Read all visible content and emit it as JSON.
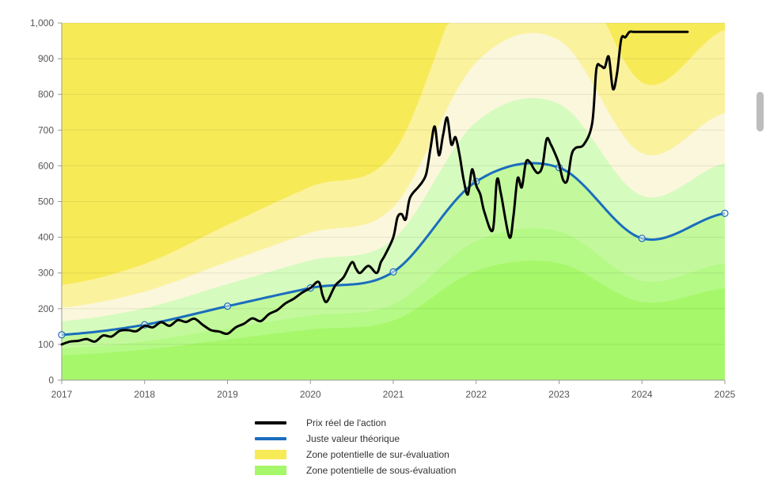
{
  "chart_data": {
    "type": "area",
    "xlim": [
      2017,
      2025
    ],
    "ylim": [
      0,
      1000
    ],
    "x_ticks": [
      2017,
      2018,
      2019,
      2020,
      2021,
      2022,
      2023,
      2024,
      2025
    ],
    "x_tick_labels": [
      "2017",
      "2018",
      "2019",
      "2020",
      "2021",
      "2022",
      "2023",
      "2024",
      "2025"
    ],
    "y_ticks": [
      0,
      100,
      200,
      300,
      400,
      500,
      600,
      700,
      800,
      900,
      1000
    ],
    "y_tick_labels": [
      "0",
      "100",
      "200",
      "300",
      "400",
      "500",
      "600",
      "700",
      "800",
      "900",
      "1,000"
    ],
    "grid": "horizontal",
    "legend_position": "bottom",
    "fair_value": {
      "name": "Juste valeur théorique",
      "color": "#1a6dbd",
      "x": [
        2017,
        2018,
        2019,
        2020,
        2021,
        2022,
        2023,
        2024,
        2025
      ],
      "y": [
        127,
        155,
        207,
        258,
        303,
        556,
        595,
        397,
        467
      ]
    },
    "bands": [
      {
        "role": "sur-evaluation-zone-3",
        "color": "#f7ea57",
        "ratio": 2.1
      },
      {
        "role": "sur-evaluation-zone-2",
        "color": "#fbf29e",
        "ratio": 1.6
      },
      {
        "role": "sur-evaluation-zone-1",
        "color": "#fbf7dc",
        "ratio": 1.3
      },
      {
        "role": "fair-value-zone",
        "color": "#d6fbbf",
        "ratio": 1.0
      },
      {
        "role": "sous-evaluation-zone-1",
        "color": "#c3f99c",
        "ratio": 0.7
      },
      {
        "role": "sous-evaluation-zone-2",
        "color": "#b5f986",
        "ratio": 0.55
      },
      {
        "role": "sous-evaluation-zone-3",
        "color": "#a6f76a",
        "ratio": 0.4
      }
    ],
    "price": {
      "name": "Prix réel de l'action",
      "color": "#000000",
      "x": [
        2017.0,
        2017.1,
        2017.2,
        2017.3,
        2017.4,
        2017.5,
        2017.6,
        2017.7,
        2017.8,
        2017.9,
        2018.0,
        2018.1,
        2018.2,
        2018.3,
        2018.4,
        2018.5,
        2018.6,
        2018.7,
        2018.8,
        2018.9,
        2019.0,
        2019.1,
        2019.2,
        2019.3,
        2019.4,
        2019.5,
        2019.6,
        2019.7,
        2019.8,
        2019.9,
        2020.0,
        2020.1,
        2020.15,
        2020.2,
        2020.3,
        2020.4,
        2020.5,
        2020.55,
        2020.6,
        2020.7,
        2020.8,
        2020.85,
        2020.9,
        2021.0,
        2021.05,
        2021.1,
        2021.15,
        2021.2,
        2021.3,
        2021.35,
        2021.4,
        2021.45,
        2021.5,
        2021.55,
        2021.6,
        2021.65,
        2021.7,
        2021.75,
        2021.8,
        2021.85,
        2021.9,
        2021.95,
        2022.0,
        2022.05,
        2022.1,
        2022.2,
        2022.25,
        2022.3,
        2022.4,
        2022.45,
        2022.5,
        2022.55,
        2022.6,
        2022.65,
        2022.7,
        2022.75,
        2022.8,
        2022.85,
        2022.9,
        2022.95,
        2023.0,
        2023.05,
        2023.1,
        2023.15,
        2023.2,
        2023.3,
        2023.4,
        2023.45,
        2023.5,
        2023.55,
        2023.6,
        2023.65,
        2023.7,
        2023.75,
        2023.8,
        2023.85,
        2023.9,
        2023.95,
        2024.0,
        2024.05,
        2024.1,
        2024.15,
        2024.2,
        2024.25,
        2024.3,
        2024.35,
        2024.4,
        2024.45,
        2024.5,
        2024.55
      ],
      "y": [
        100,
        108,
        110,
        115,
        108,
        125,
        122,
        138,
        140,
        137,
        152,
        148,
        162,
        152,
        168,
        163,
        172,
        155,
        140,
        136,
        130,
        148,
        158,
        173,
        165,
        185,
        196,
        215,
        228,
        245,
        258,
        275,
        235,
        220,
        265,
        288,
        330,
        312,
        300,
        320,
        300,
        330,
        350,
        400,
        455,
        465,
        450,
        510,
        540,
        555,
        580,
        650,
        710,
        630,
        685,
        735,
        660,
        680,
        630,
        560,
        520,
        590,
        545,
        520,
        470,
        420,
        560,
        520,
        400,
        460,
        565,
        540,
        610,
        610,
        590,
        580,
        600,
        675,
        660,
        635,
        605,
        560,
        560,
        630,
        650,
        660,
        720,
        870,
        880,
        875,
        905,
        815,
        860,
        955,
        960,
        975,
        975,
        975,
        975,
        975,
        975,
        975,
        975,
        975,
        975,
        975,
        975,
        975,
        975,
        975
      ]
    }
  },
  "legend": [
    {
      "label": "Prix réel de l'action",
      "color": "#000000",
      "kind": "line"
    },
    {
      "label": "Juste valeur théorique",
      "color": "#1a6dbd",
      "kind": "line"
    },
    {
      "label": "Zone potentielle de sur-évaluation",
      "color": "#f7ea57",
      "kind": "box"
    },
    {
      "label": "Zone potentielle de sous-évaluation",
      "color": "#a6f76a",
      "kind": "box"
    }
  ]
}
